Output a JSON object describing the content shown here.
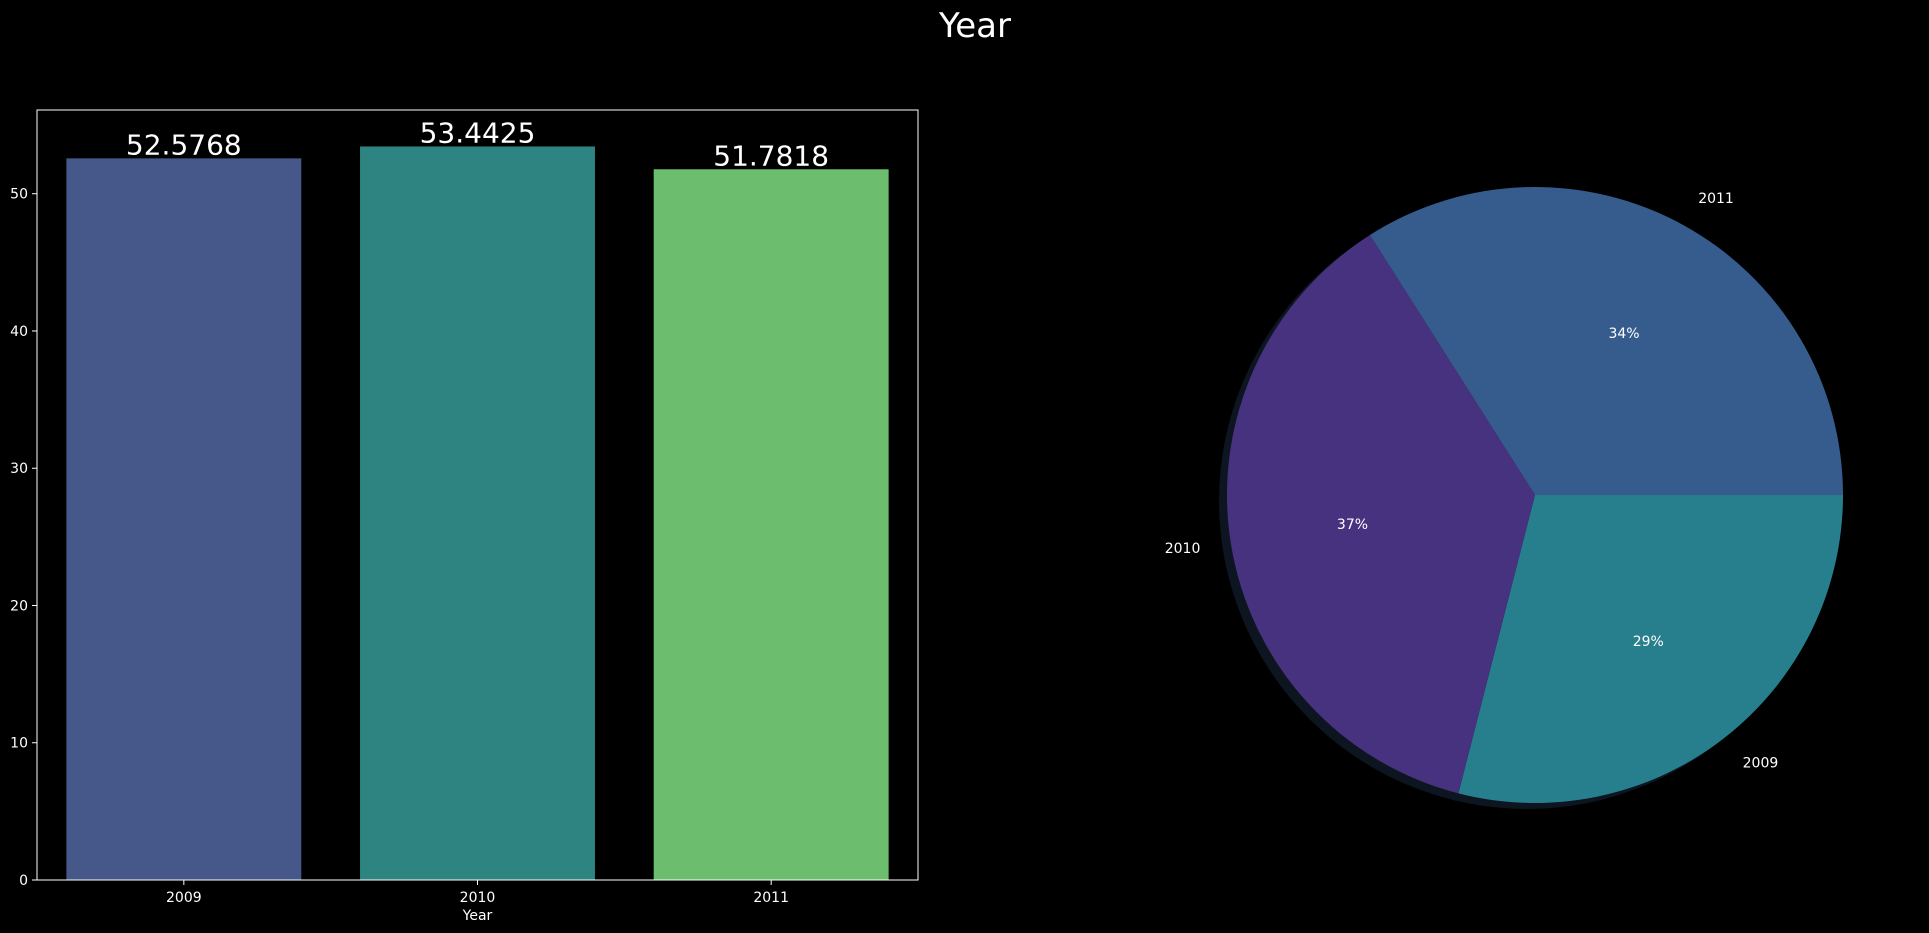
{
  "figure": {
    "title": "Year",
    "background": "#000000",
    "text_color": "#ffffff"
  },
  "chart_data": [
    {
      "type": "bar",
      "categories": [
        "2009",
        "2010",
        "2011"
      ],
      "values": [
        52.5768,
        53.4425,
        51.7818
      ],
      "data_labels": [
        "52.5768",
        "53.4425",
        "51.7818"
      ],
      "colors": [
        "#46588a",
        "#2e8480",
        "#6dbd6e"
      ],
      "xlabel": "Year",
      "ylabel": "",
      "ylim": [
        0,
        56.1
      ],
      "yticks": [
        0,
        10,
        20,
        30,
        40,
        50
      ],
      "grid": false,
      "legend": "none"
    },
    {
      "type": "pie",
      "labels": [
        "2009",
        "2010",
        "2011"
      ],
      "values": [
        29,
        37,
        34
      ],
      "pct_labels": [
        "29%",
        "37%",
        "34%"
      ],
      "colors": [
        "#277f8e",
        "#46327e",
        "#365c8d"
      ],
      "shadow": true,
      "legend": "none"
    }
  ]
}
